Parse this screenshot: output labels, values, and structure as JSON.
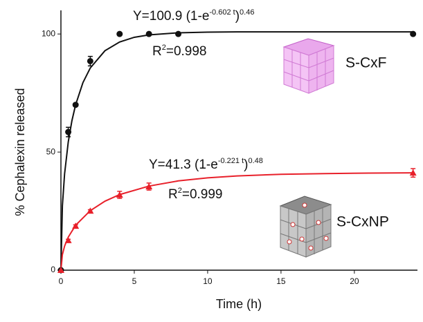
{
  "chart_data": {
    "type": "scatter",
    "x_label": "Time (h)",
    "y_label": "% Cephalexin released",
    "xlim": [
      0,
      24.3
    ],
    "ylim": [
      0,
      110
    ],
    "xticks": [
      0,
      5,
      10,
      15,
      20
    ],
    "yticks": [
      0,
      50,
      100
    ],
    "grid": false,
    "series": [
      {
        "name": "S-CxF",
        "color": "#111111",
        "marker": "circle",
        "x": [
          0,
          0.5,
          1,
          2,
          4,
          6,
          8,
          24
        ],
        "values": [
          0,
          58.5,
          70,
          88.5,
          100,
          100,
          100,
          100
        ],
        "errors": [
          0,
          2,
          0.5,
          2,
          0.5,
          0.5,
          0.5,
          0.5
        ]
      },
      {
        "name": "S-CxNP",
        "color": "#e8202a",
        "marker": "triangle",
        "x": [
          0,
          0.5,
          1,
          2,
          4,
          6,
          24
        ],
        "values": [
          0,
          12.6,
          18.7,
          25.1,
          31.9,
          35.4,
          41.2
        ],
        "errors": [
          0,
          0.5,
          0.5,
          0.5,
          1.5,
          1.5,
          1.8
        ]
      }
    ],
    "fits": [
      {
        "color": "#111111",
        "x": [
          0,
          0.1,
          0.25,
          0.5,
          0.75,
          1,
          1.5,
          2,
          3,
          4,
          5,
          6,
          8,
          10,
          12,
          18,
          24
        ],
        "values": [
          0,
          27.3,
          40.8,
          54.3,
          63.3,
          70.0,
          79.4,
          85.6,
          92.9,
          96.6,
          98.6,
          99.6,
          100.5,
          100.8,
          100.9,
          100.9,
          100.9
        ],
        "equation": [
          "Y=100.9 (1-e",
          "-0.602 t",
          ")",
          "0.46"
        ],
        "r2": [
          "R",
          "2",
          "=0.998"
        ]
      },
      {
        "color": "#e8202a",
        "x": [
          0,
          0.1,
          0.25,
          0.5,
          1,
          2,
          3,
          4,
          6,
          8,
          10,
          12,
          15,
          18,
          21,
          24
        ],
        "values": [
          0,
          6.6,
          10.2,
          14.0,
          19.0,
          25.2,
          29.2,
          32.0,
          35.6,
          37.8,
          39.1,
          39.9,
          40.6,
          40.9,
          41.1,
          41.2
        ],
        "equation": [
          "Y=41.3 (1-e",
          "-0.221 t",
          ")",
          "0.48"
        ],
        "r2": [
          "R",
          "2",
          "=0.999"
        ]
      }
    ]
  }
}
